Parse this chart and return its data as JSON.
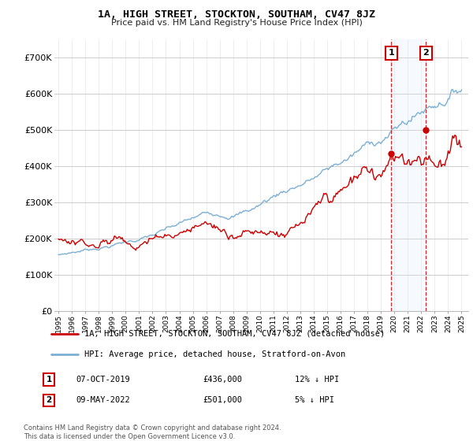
{
  "title": "1A, HIGH STREET, STOCKTON, SOUTHAM, CV47 8JZ",
  "subtitle": "Price paid vs. HM Land Registry's House Price Index (HPI)",
  "property_label": "1A, HIGH STREET, STOCKTON, SOUTHAM, CV47 8JZ (detached house)",
  "hpi_label": "HPI: Average price, detached house, Stratford-on-Avon",
  "ylim": [
    0,
    750000
  ],
  "yticks": [
    0,
    100000,
    200000,
    300000,
    400000,
    500000,
    600000,
    700000
  ],
  "ytick_labels": [
    "£0",
    "£100K",
    "£200K",
    "£300K",
    "£400K",
    "£500K",
    "£600K",
    "£700K"
  ],
  "start_year": 1995,
  "end_year": 2025,
  "sale1_date": "07-OCT-2019",
  "sale1_price": 436000,
  "sale1_pct": "12% ↓ HPI",
  "sale1_x": 2019.77,
  "sale2_date": "09-MAY-2022",
  "sale2_price": 501000,
  "sale2_pct": "5% ↓ HPI",
  "sale2_x": 2022.36,
  "property_color": "#cc0000",
  "hpi_color": "#7bafd4",
  "shade_color": "#ddeeff",
  "vline_color": "#cc0000",
  "annotation_box_color": "#cc0000",
  "background_color": "#ffffff",
  "grid_color": "#cccccc",
  "footer_text": "Contains HM Land Registry data © Crown copyright and database right 2024.\nThis data is licensed under the Open Government Licence v3.0."
}
